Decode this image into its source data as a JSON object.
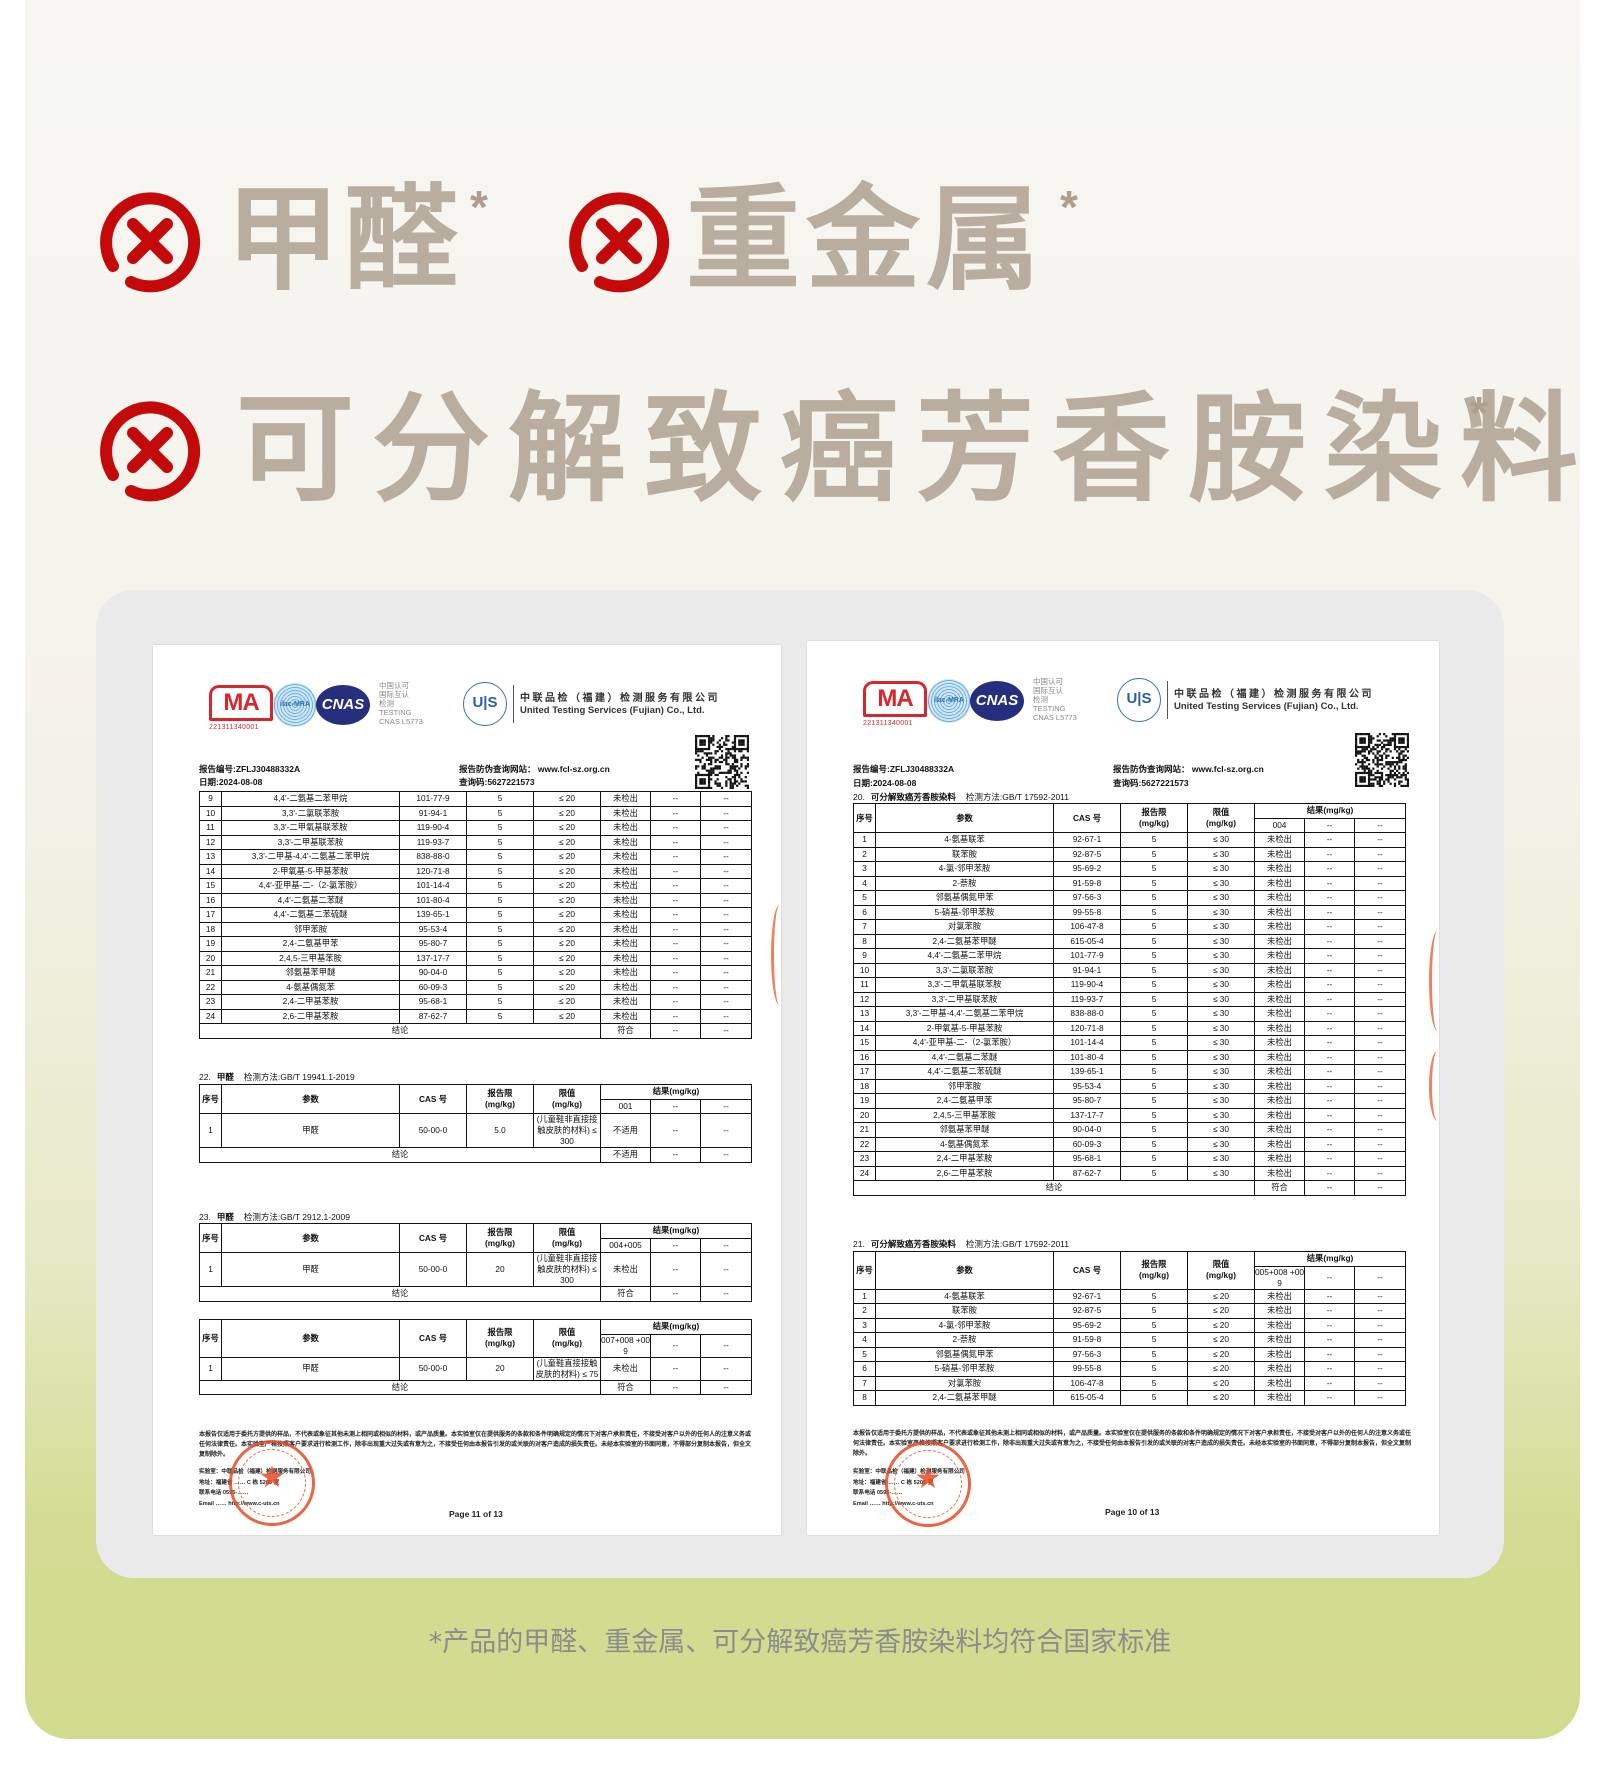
{
  "colors": {
    "accent_red": "#c4090b",
    "headline": "#b9ad9f",
    "stamp": "#ea4a22",
    "bg_bottom": "#d1db8e"
  },
  "headline": {
    "items": [
      {
        "icon": "circle-x-icon",
        "text": "甲醛",
        "mark": "*"
      },
      {
        "icon": "circle-x-icon",
        "text": "重金属",
        "mark": "*"
      },
      {
        "icon": "circle-x-icon",
        "text": "可分解致癌芳香胺染料",
        "mark": "*"
      }
    ]
  },
  "logos": {
    "ma": "MA",
    "ma_number": "221311340001",
    "ilac": "ilac-MRA",
    "cnas": "CNAS",
    "accreditation_lines": [
      "中国认可",
      "国际互认",
      "检测",
      "TESTING",
      "CNAS L5773"
    ],
    "uts": "U|S",
    "company_cn": "中联品检（福建）检测服务有限公司",
    "company_en": "United Testing Services (Fujian) Co., Ltd."
  },
  "table_header": {
    "no": "序号",
    "param": "参数",
    "cas": "CAS 号",
    "rl": "报告限",
    "limit": "限值",
    "unit": "(mg/kg)",
    "result": "结果(mg/kg)",
    "conclusion": "结论"
  },
  "documents": [
    {
      "report_no": "报告编号:ZFLJ30488332A",
      "date": "日期:2024-08-08",
      "website": "报告防伪查询网站： www.fcl-sz.org.cn",
      "query_code": "查询码:5627221573",
      "section_titles": [
        {
          "no": "22.",
          "name": "甲醛",
          "method": "检测方法:GB/T 19941.1-2019"
        },
        {
          "no": "23.",
          "name": "甲醛",
          "method": "检测方法:GB/T 2912.1-2009"
        }
      ],
      "tables": [
        {
          "header": false,
          "rows": [
            [
              "9",
              "4,4'-二氨基二苯甲烷",
              "101-77-9",
              "5",
              "≤ 20",
              "未检出",
              "--",
              "--"
            ],
            [
              "10",
              "3,3'-二氯联苯胺",
              "91-94-1",
              "5",
              "≤ 20",
              "未检出",
              "--",
              "--"
            ],
            [
              "11",
              "3,3'-二甲氧基联苯胺",
              "119-90-4",
              "5",
              "≤ 20",
              "未检出",
              "--",
              "--"
            ],
            [
              "12",
              "3,3'-二甲基联苯胺",
              "119-93-7",
              "5",
              "≤ 20",
              "未检出",
              "--",
              "--"
            ],
            [
              "13",
              "3,3'-二甲基-4,4'-二氨基二苯甲烷",
              "838-88-0",
              "5",
              "≤ 20",
              "未检出",
              "--",
              "--"
            ],
            [
              "14",
              "2-甲氧基-5-甲基苯胺",
              "120-71-8",
              "5",
              "≤ 20",
              "未检出",
              "--",
              "--"
            ],
            [
              "15",
              "4,4'-亚甲基-二-（2-氯苯胺）",
              "101-14-4",
              "5",
              "≤ 20",
              "未检出",
              "--",
              "--"
            ],
            [
              "16",
              "4,4'-二氨基二苯醚",
              "101-80-4",
              "5",
              "≤ 20",
              "未检出",
              "--",
              "--"
            ],
            [
              "17",
              "4,4'-二氨基二苯硫醚",
              "139-65-1",
              "5",
              "≤ 20",
              "未检出",
              "--",
              "--"
            ],
            [
              "18",
              "邻甲苯胺",
              "95-53-4",
              "5",
              "≤ 20",
              "未检出",
              "--",
              "--"
            ],
            [
              "19",
              "2,4-二氨基甲苯",
              "95-80-7",
              "5",
              "≤ 20",
              "未检出",
              "--",
              "--"
            ],
            [
              "20",
              "2,4,5-三甲基苯胺",
              "137-17-7",
              "5",
              "≤ 20",
              "未检出",
              "--",
              "--"
            ],
            [
              "21",
              "邻氨基苯甲醚",
              "90-04-0",
              "5",
              "≤ 20",
              "未检出",
              "--",
              "--"
            ],
            [
              "22",
              "4-氨基偶氮苯",
              "60-09-3",
              "5",
              "≤ 20",
              "未检出",
              "--",
              "--"
            ],
            [
              "23",
              "2,4-二甲基苯胺",
              "95-68-1",
              "5",
              "≤ 20",
              "未检出",
              "--",
              "--"
            ],
            [
              "24",
              "2,6-二甲基苯胺",
              "87-62-7",
              "5",
              "≤ 20",
              "未检出",
              "--",
              "--"
            ]
          ],
          "conclusion": [
            "符合",
            "--",
            "--"
          ]
        },
        {
          "header": true,
          "sample_ids": [
            "001",
            "--",
            "--"
          ],
          "rows": [
            [
              "1",
              "甲醛",
              "50-00-0",
              "5.0",
              "(儿童鞋非直接接触皮肤的材料) ≤ 300",
              "不适用",
              "--",
              "--"
            ]
          ],
          "conclusion": [
            "不适用",
            "--",
            "--"
          ]
        },
        {
          "header": true,
          "sample_ids": [
            "004+005",
            "--",
            "--"
          ],
          "rows": [
            [
              "1",
              "甲醛",
              "50-00-0",
              "20",
              "(儿童鞋非直接接触皮肤的材料) ≤ 300",
              "未检出",
              "--",
              "--"
            ]
          ],
          "conclusion": [
            "符合",
            "--",
            "--"
          ]
        },
        {
          "header": true,
          "sample_ids": [
            "007+008 +009",
            "--",
            "--"
          ],
          "rows": [
            [
              "1",
              "甲醛",
              "50-00-0",
              "20",
              "(儿童鞋直接接触皮肤的材料) ≤ 75",
              "未检出",
              "--",
              "--"
            ]
          ],
          "conclusion": [
            "符合",
            "--",
            "--"
          ]
        }
      ],
      "disclaimer": "本报告仅适用于委托方提供的样品，不代表或象征其他未测上相同或相似的材料，或产品质量。本实验室仅在提供服务的条款和条件明确规定的情况下对客户承担责任，不接受对客户以外的任何人的注意义务或任何法律责任。本实验室严格按照客户要求进行检测工作，除非出现重大过失或有意为之，不接受任何由本报告引发的或关联的对客户造成的损失责任。未经本实验室的书面同意，不得部分复制本报告，但全文复制除外。",
      "lab_lines": [
        "实验室：中联品检（福建）检测服务有限公司",
        "地址：福建省 …… C 栋 5205 室",
        "联系电话 0595-……",
        "Email …… http://www.c-uts.cn"
      ],
      "page": "Page 11 of 13"
    },
    {
      "report_no": "报告编号:ZFLJ30488332A",
      "date": "日期:2024-08-08",
      "website": "报告防伪查询网站： www.fcl-sz.org.cn",
      "query_code": "查询码:5627221573",
      "section_titles": [
        {
          "no": "20.",
          "name": "可分解致癌芳香胺染料",
          "method": "检测方法:GB/T 17592-2011"
        },
        {
          "no": "21.",
          "name": "可分解致癌芳香胺染料",
          "method": "检测方法:GB/T 17592-2011"
        }
      ],
      "tables": [
        {
          "header": true,
          "sample_ids": [
            "004",
            "--",
            "--"
          ],
          "rows": [
            [
              "1",
              "4-氨基联苯",
              "92-67-1",
              "5",
              "≤ 30",
              "未检出",
              "--",
              "--"
            ],
            [
              "2",
              "联苯胺",
              "92-87-5",
              "5",
              "≤ 30",
              "未检出",
              "--",
              "--"
            ],
            [
              "3",
              "4-氯-邻甲苯胺",
              "95-69-2",
              "5",
              "≤ 30",
              "未检出",
              "--",
              "--"
            ],
            [
              "4",
              "2-萘胺",
              "91-59-8",
              "5",
              "≤ 30",
              "未检出",
              "--",
              "--"
            ],
            [
              "5",
              "邻氨基偶氮甲苯",
              "97-56-3",
              "5",
              "≤ 30",
              "未检出",
              "--",
              "--"
            ],
            [
              "6",
              "5-硝基-邻甲苯胺",
              "99-55-8",
              "5",
              "≤ 30",
              "未检出",
              "--",
              "--"
            ],
            [
              "7",
              "对氯苯胺",
              "106-47-8",
              "5",
              "≤ 30",
              "未检出",
              "--",
              "--"
            ],
            [
              "8",
              "2,4-二氨基苯甲醚",
              "615-05-4",
              "5",
              "≤ 30",
              "未检出",
              "--",
              "--"
            ],
            [
              "9",
              "4,4'-二氨基二苯甲烷",
              "101-77-9",
              "5",
              "≤ 30",
              "未检出",
              "--",
              "--"
            ],
            [
              "10",
              "3,3'-二氯联苯胺",
              "91-94-1",
              "5",
              "≤ 30",
              "未检出",
              "--",
              "--"
            ],
            [
              "11",
              "3,3'-二甲氧基联苯胺",
              "119-90-4",
              "5",
              "≤ 30",
              "未检出",
              "--",
              "--"
            ],
            [
              "12",
              "3,3'-二甲基联苯胺",
              "119-93-7",
              "5",
              "≤ 30",
              "未检出",
              "--",
              "--"
            ],
            [
              "13",
              "3,3'-二甲基-4,4'-二氨基二苯甲烷",
              "838-88-0",
              "5",
              "≤ 30",
              "未检出",
              "--",
              "--"
            ],
            [
              "14",
              "2-甲氧基-5-甲基苯胺",
              "120-71-8",
              "5",
              "≤ 30",
              "未检出",
              "--",
              "--"
            ],
            [
              "15",
              "4,4'-亚甲基-二-（2-氯苯胺）",
              "101-14-4",
              "5",
              "≤ 30",
              "未检出",
              "--",
              "--"
            ],
            [
              "16",
              "4,4'-二氨基二苯醚",
              "101-80-4",
              "5",
              "≤ 30",
              "未检出",
              "--",
              "--"
            ],
            [
              "17",
              "4,4'-二氨基二苯硫醚",
              "139-65-1",
              "5",
              "≤ 30",
              "未检出",
              "--",
              "--"
            ],
            [
              "18",
              "邻甲苯胺",
              "95-53-4",
              "5",
              "≤ 30",
              "未检出",
              "--",
              "--"
            ],
            [
              "19",
              "2,4-二氨基甲苯",
              "95-80-7",
              "5",
              "≤ 30",
              "未检出",
              "--",
              "--"
            ],
            [
              "20",
              "2,4,5-三甲基苯胺",
              "137-17-7",
              "5",
              "≤ 30",
              "未检出",
              "--",
              "--"
            ],
            [
              "21",
              "邻氨基苯甲醚",
              "90-04-0",
              "5",
              "≤ 30",
              "未检出",
              "--",
              "--"
            ],
            [
              "22",
              "4-氨基偶氮苯",
              "60-09-3",
              "5",
              "≤ 30",
              "未检出",
              "--",
              "--"
            ],
            [
              "23",
              "2,4-二甲基苯胺",
              "95-68-1",
              "5",
              "≤ 30",
              "未检出",
              "--",
              "--"
            ],
            [
              "24",
              "2,6-二甲基苯胺",
              "87-62-7",
              "5",
              "≤ 30",
              "未检出",
              "--",
              "--"
            ]
          ],
          "conclusion": [
            "符合",
            "--",
            "--"
          ]
        },
        {
          "header": true,
          "sample_ids": [
            "005+008 +009",
            "--",
            "--"
          ],
          "rows": [
            [
              "1",
              "4-氨基联苯",
              "92-67-1",
              "5",
              "≤ 20",
              "未检出",
              "--",
              "--"
            ],
            [
              "2",
              "联苯胺",
              "92-87-5",
              "5",
              "≤ 20",
              "未检出",
              "--",
              "--"
            ],
            [
              "3",
              "4-氯-邻甲苯胺",
              "95-69-2",
              "5",
              "≤ 20",
              "未检出",
              "--",
              "--"
            ],
            [
              "4",
              "2-萘胺",
              "91-59-8",
              "5",
              "≤ 20",
              "未检出",
              "--",
              "--"
            ],
            [
              "5",
              "邻氨基偶氮甲苯",
              "97-56-3",
              "5",
              "≤ 20",
              "未检出",
              "--",
              "--"
            ],
            [
              "6",
              "5-硝基-邻甲苯胺",
              "99-55-8",
              "5",
              "≤ 20",
              "未检出",
              "--",
              "--"
            ],
            [
              "7",
              "对氯苯胺",
              "106-47-8",
              "5",
              "≤ 20",
              "未检出",
              "--",
              "--"
            ],
            [
              "8",
              "2,4-二氨基苯甲醚",
              "615-05-4",
              "5",
              "≤ 20",
              "未检出",
              "--",
              "--"
            ]
          ]
        }
      ],
      "disclaimer": "本报告仅适用于委托方提供的样品，不代表或象征其他未测上相同或相似的材料，或产品质量。本实验室仅在提供服务的条款和条件明确规定的情况下对客户承担责任，不接受对客户以外的任何人的注意义务或任何法律责任。本实验室严格按照客户要求进行检测工作，除非出现重大过失或有意为之，不接受任何由本报告引发的或关联的对客户造成的损失责任。未经本实验室的书面同意，不得部分复制本报告，但全文复制除外。",
      "lab_lines": [
        "实验室：中联品检（福建）检测服务有限公司",
        "地址：福建省 …… C 栋 5205 室",
        "联系电话 0595-……",
        "Email …… http://www.c-uts.cn"
      ],
      "page": "Page 10 of 13"
    }
  ],
  "caption": "*产品的甲醛、重金属、可分解致癌芳香胺染料均符合国家标准"
}
